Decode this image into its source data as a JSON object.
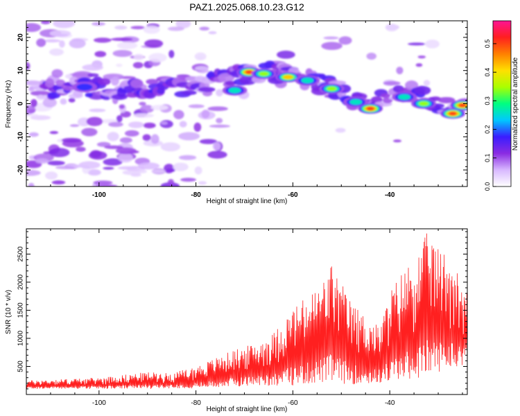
{
  "figure": {
    "title": "PAZ1.2025.068.10.23.G12"
  },
  "chart_data": [
    {
      "type": "heatmap",
      "xlabel": "Height of straight line (km)",
      "ylabel": "Frequency (Hz)",
      "xlim": [
        -115,
        -24
      ],
      "ylim": [
        -25,
        25
      ],
      "xticks": [
        -100,
        -80,
        -60,
        -40
      ],
      "yticks": [
        -20,
        -10,
        0,
        10,
        20
      ],
      "grid": false,
      "colorbar": {
        "label": "Normalized spectral amplitude",
        "range": [
          0,
          0.58
        ],
        "ticks": [
          0.0,
          0.1,
          0.2,
          0.3,
          0.4,
          0.5
        ],
        "tick_labels": [
          "0.0",
          "0.1",
          "0.2",
          "0.3",
          "0.4",
          "0.5"
        ],
        "colormap": [
          "#ffffff",
          "#d8b8ff",
          "#8a2be2",
          "#3a1dff",
          "#00c8ff",
          "#00ff80",
          "#aaff00",
          "#ffe000",
          "#ff8000",
          "#ff1f1f",
          "#ff1493"
        ]
      },
      "ridge": {
        "x": [
          -110,
          -105,
          -100,
          -95,
          -90,
          -85,
          -80,
          -76,
          -72,
          -68,
          -64,
          -60,
          -56,
          -52,
          -48,
          -44,
          -40,
          -36,
          -32,
          -28,
          -25
        ],
        "y": [
          4,
          4.5,
          4.5,
          4.5,
          5,
          5,
          5.5,
          7,
          8.5,
          9.5,
          9.5,
          9,
          7,
          5,
          1.5,
          -1,
          4,
          3.5,
          1,
          -1.5,
          -0.5
        ]
      },
      "peaks": [
        {
          "x": -103,
          "y": 5,
          "value": 0.22
        },
        {
          "x": -72,
          "y": 4,
          "value": 0.3
        },
        {
          "x": -69,
          "y": 9.5,
          "value": 0.5
        },
        {
          "x": -66,
          "y": 9,
          "value": 0.35
        },
        {
          "x": -61,
          "y": 8,
          "value": 0.45
        },
        {
          "x": -57,
          "y": 7,
          "value": 0.3
        },
        {
          "x": -52,
          "y": 4.5,
          "value": 0.4
        },
        {
          "x": -47,
          "y": 0.5,
          "value": 0.3
        },
        {
          "x": -44,
          "y": -1.5,
          "value": 0.55
        },
        {
          "x": -37,
          "y": 2,
          "value": 0.3
        },
        {
          "x": -33,
          "y": 0,
          "value": 0.35
        },
        {
          "x": -27,
          "y": -3,
          "value": 0.5
        },
        {
          "x": -25,
          "y": -0.5,
          "value": 0.55
        }
      ]
    },
    {
      "type": "line",
      "xlabel": "Height of straight line (km)",
      "ylabel": "SNR (10 * v/v)",
      "xlim": [
        -115,
        -24
      ],
      "ylim": [
        0,
        2950
      ],
      "xticks": [
        -100,
        -80,
        -60,
        -40
      ],
      "yticks": [
        500,
        1000,
        1500,
        2000,
        2500
      ],
      "grid": false,
      "series": [
        {
          "color": "#ff2020",
          "envelope_x": [
            -115,
            -100,
            -90,
            -85,
            -80,
            -76,
            -72,
            -68,
            -64,
            -60,
            -57,
            -54,
            -52,
            -48,
            -45,
            -42,
            -40,
            -37,
            -34,
            -32,
            -30,
            -28,
            -26,
            -24
          ],
          "envelope_low": [
            100,
            100,
            100,
            110,
            110,
            120,
            140,
            150,
            150,
            160,
            180,
            200,
            200,
            180,
            170,
            200,
            220,
            250,
            300,
            350,
            400,
            450,
            500,
            550
          ],
          "envelope_high": [
            250,
            300,
            400,
            380,
            500,
            650,
            800,
            900,
            1100,
            1550,
            1750,
            2000,
            2350,
            1650,
            1400,
            1200,
            1850,
            2250,
            2550,
            2950,
            2600,
            2550,
            2200,
            1800
          ]
        }
      ]
    }
  ]
}
